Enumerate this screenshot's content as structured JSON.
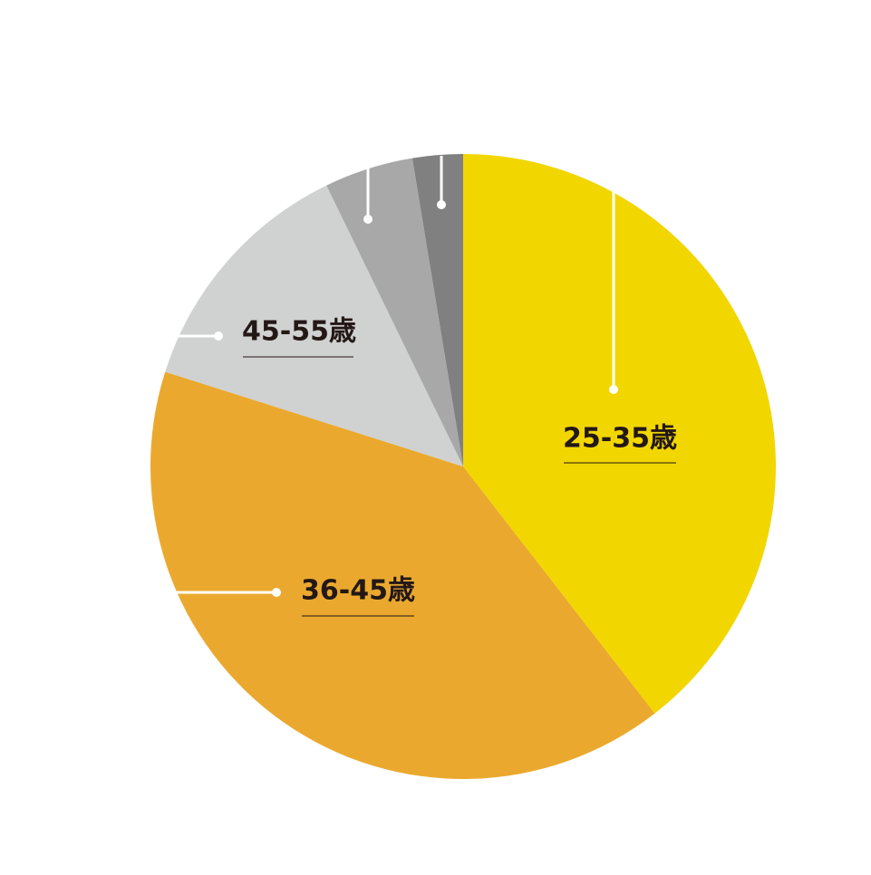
{
  "chart_data": {
    "type": "pie",
    "categories": [
      "25-35歳",
      "36-45歳",
      "45-55歳",
      null,
      null
    ],
    "values": [
      39.5,
      40.4,
      12.9,
      4.6,
      2.6
    ],
    "colors": [
      "#f2d600",
      "#eaa92e",
      "#d0d1d1",
      "#a8a8a8",
      "#808080"
    ]
  }
}
